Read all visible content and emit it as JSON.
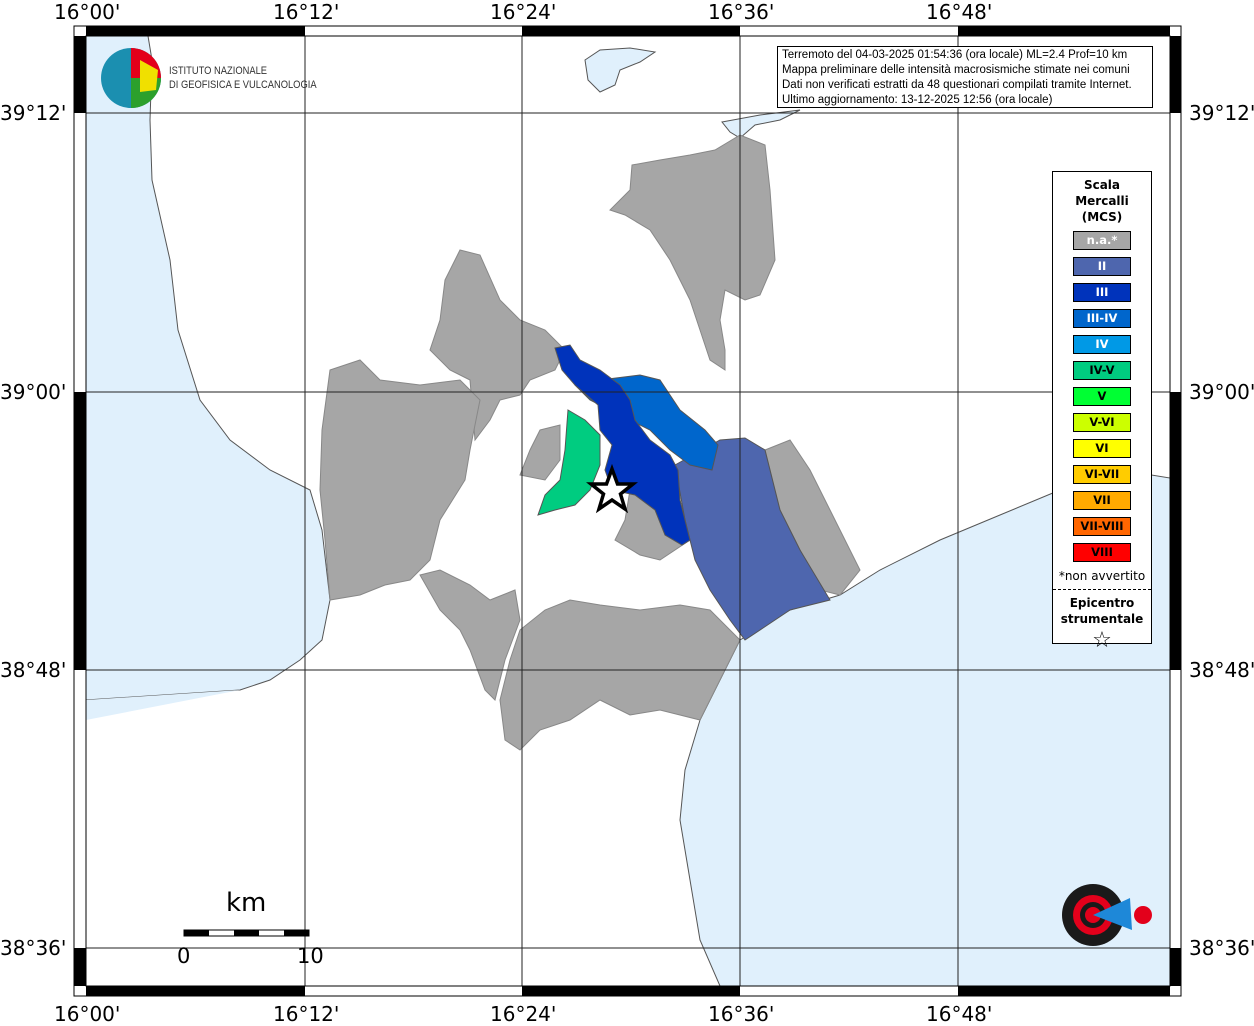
{
  "axes": {
    "lon_ticks": [
      "16°00'",
      "16°12'",
      "16°24'",
      "16°36'",
      "16°48'"
    ],
    "lat_ticks": [
      "39°12'",
      "39°00'",
      "38°48'",
      "38°36'"
    ]
  },
  "info": {
    "lines": [
      "Terremoto del 04-03-2025 01:54:36 (ora locale) ML=2.4 Prof=10 km",
      "Mappa preliminare delle intensità macrosismiche stimate nei comuni",
      "Dati non verificati estratti da 48 questionari compilati tramite Internet.",
      "Ultimo aggiornamento: 13-12-2025 12:56 (ora locale)"
    ]
  },
  "legend": {
    "title": [
      "Scala",
      "Mercalli",
      "(MCS)"
    ],
    "classes": [
      {
        "label": "n.a.*",
        "color": "#a6a6a6",
        "text": "#fff"
      },
      {
        "label": "II",
        "color": "#4e66ae",
        "text": "#fff"
      },
      {
        "label": "III",
        "color": "#0033bb",
        "text": "#fff"
      },
      {
        "label": "III-IV",
        "color": "#0066cc",
        "text": "#fff"
      },
      {
        "label": "IV",
        "color": "#0099e6",
        "text": "#fff"
      },
      {
        "label": "IV-V",
        "color": "#00cc80",
        "text": "#000"
      },
      {
        "label": "V",
        "color": "#00ff33",
        "text": "#000"
      },
      {
        "label": "V-VI",
        "color": "#ccff00",
        "text": "#000"
      },
      {
        "label": "VI",
        "color": "#ffff00",
        "text": "#000"
      },
      {
        "label": "VI-VII",
        "color": "#ffcc00",
        "text": "#000"
      },
      {
        "label": "VII",
        "color": "#ffaa00",
        "text": "#000"
      },
      {
        "label": "VII-VIII",
        "color": "#ff6600",
        "text": "#000"
      },
      {
        "label": "VIII",
        "color": "#ff0000",
        "text": "#000"
      }
    ],
    "note": "*non avvertito",
    "epicenter_label": [
      "Epicentro",
      "strumentale"
    ],
    "epicenter_icon": "star-outline-icon"
  },
  "logos": {
    "ingv": [
      "ISTITUTO NAZIONALE",
      "DI GEOFISICA E VULCANOLOGIA"
    ],
    "hsit": "www.haisentitoilterremoto.it"
  },
  "scalebar": {
    "unit": "km",
    "min": "0",
    "max": "10"
  },
  "colors": {
    "sea": "#e0f0fc",
    "land": "#ffffff",
    "na": "#a6a6a6",
    "II": "#4e66ae",
    "III": "#0033bb",
    "III-IV": "#0066cc",
    "IV-V": "#00cc80"
  }
}
